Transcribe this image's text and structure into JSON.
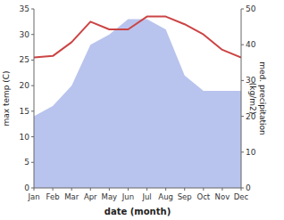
{
  "chart_data": {
    "type": "line",
    "categories": [
      "Jan",
      "Feb",
      "Mar",
      "Apr",
      "May",
      "Jun",
      "Jul",
      "Aug",
      "Sep",
      "Oct",
      "Nov",
      "Dec"
    ],
    "series": [
      {
        "type": "area",
        "color": "#b8c4ed",
        "values": [
          14.0,
          16.0,
          20.0,
          28.0,
          30.0,
          33.0,
          33.0,
          31.0,
          22.0,
          19.0,
          19.0,
          19.0
        ]
      },
      {
        "type": "line",
        "color": "#cc4444",
        "values": [
          25.5,
          25.8,
          28.5,
          32.5,
          31.0,
          31.0,
          33.5,
          33.5,
          32.0,
          30.0,
          27.0,
          25.5
        ]
      }
    ],
    "xlabel": "date (month)",
    "ylabel": "max temp (C)",
    "y2label": "med. precipitation\n(kg/m2)",
    "ylim": [
      0,
      35
    ],
    "yticks": [
      0,
      5,
      10,
      15,
      20,
      25,
      30,
      35
    ],
    "y2lim": [
      0,
      50
    ],
    "y2ticks": [
      0,
      10,
      20,
      30,
      40,
      50
    ],
    "grid": false
  }
}
